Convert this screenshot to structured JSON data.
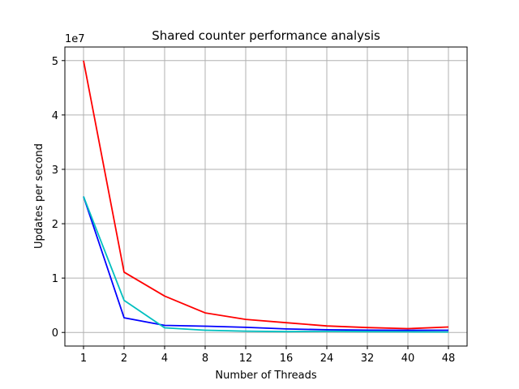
{
  "chart_data": {
    "type": "line",
    "title": "Shared counter performance analysis",
    "xlabel": "Number of Threads",
    "ylabel": "Updates per second",
    "y_offset_label": "1e7",
    "categories": [
      "1",
      "2",
      "4",
      "8",
      "12",
      "16",
      "24",
      "32",
      "40",
      "48"
    ],
    "y_ticks": [
      0,
      10000000,
      20000000,
      30000000,
      40000000,
      50000000
    ],
    "y_tick_labels": [
      "0",
      "1",
      "2",
      "3",
      "4",
      "5"
    ],
    "ylim": [
      -2500000,
      52500000
    ],
    "grid": true,
    "series": [
      {
        "color": "#ff0000",
        "values": [
          50000000,
          11100000,
          6700000,
          3600000,
          2400000,
          1800000,
          1200000,
          900000,
          700000,
          1000000
        ]
      },
      {
        "color": "#0000ff",
        "values": [
          25000000,
          2700000,
          1300000,
          1150000,
          950000,
          650000,
          500000,
          420000,
          400000,
          400000
        ]
      },
      {
        "color": "#00bfbf",
        "values": [
          25000000,
          5900000,
          850000,
          400000,
          250000,
          150000,
          200000,
          150000,
          120000,
          100000
        ]
      }
    ]
  }
}
